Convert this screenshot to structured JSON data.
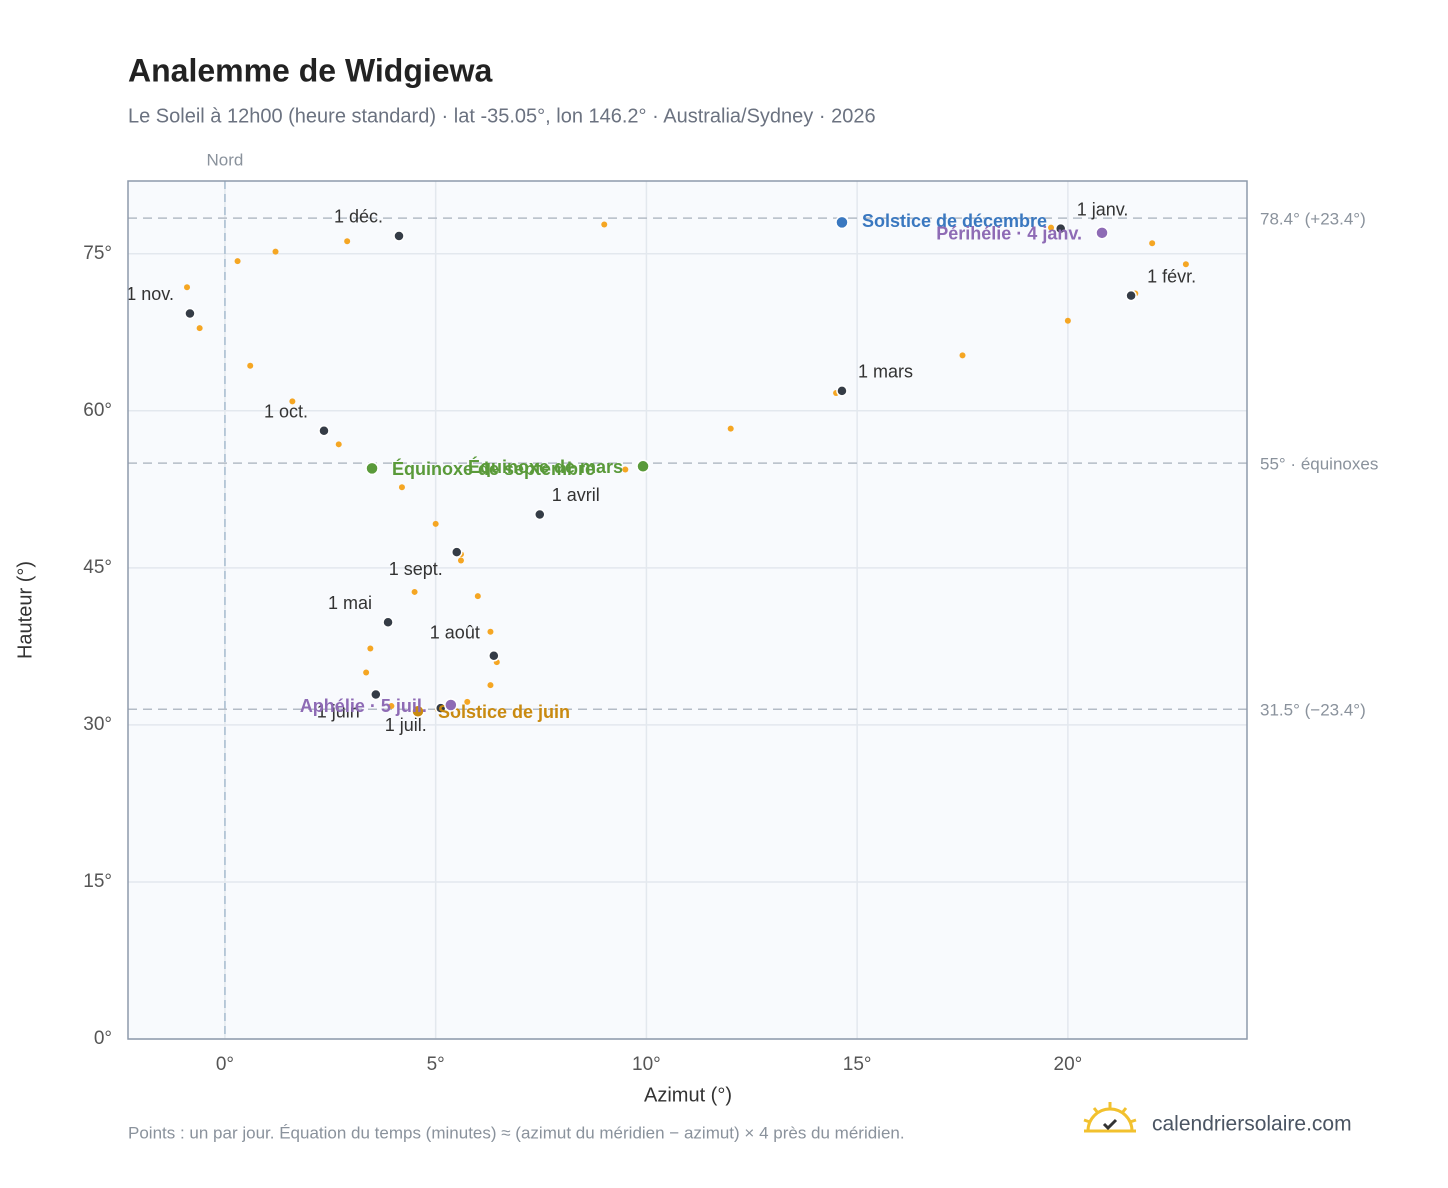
{
  "chart_data": {
    "type": "scatter",
    "title": "Analemme de Widgiewa",
    "subtitle": "Le Soleil à 12h00 (heure standard) · lat -35.05°, lon 146.2° · Australia/Sydney · 2026",
    "x_label": "Azimut (°)",
    "y_label": "Hauteur (°)",
    "note": "Points : un par jour. Équation du temps (minutes) ≈ (azimut du méridien − azimut) × 4 près du méridien.",
    "brand": "calendriersolaire.com",
    "xlim": [
      -2.3,
      24.25
    ],
    "ylim": [
      0,
      81.95
    ],
    "xticks": [
      {
        "value": 0,
        "label": "0°"
      },
      {
        "value": 5,
        "label": "5°"
      },
      {
        "value": 10,
        "label": "10°"
      },
      {
        "value": 15,
        "label": "15°"
      },
      {
        "value": 20,
        "label": "20°"
      }
    ],
    "yticks": [
      {
        "value": 0,
        "label": "0°"
      },
      {
        "value": 15,
        "label": "15°"
      },
      {
        "value": 30,
        "label": "30°"
      },
      {
        "value": 45,
        "label": "45°"
      },
      {
        "value": 60,
        "label": "60°"
      },
      {
        "value": 75,
        "label": "75°"
      }
    ],
    "grid": true,
    "vlines": [
      {
        "value": 0,
        "label": "Nord"
      }
    ],
    "hlines": [
      {
        "value": 78.4,
        "label": "78.4° (+23.4°)"
      },
      {
        "value": 55,
        "label": "55° · équinoxes"
      },
      {
        "value": 31.5,
        "label": "31.5° (−23.4°)"
      }
    ],
    "series": [
      {
        "color": "#f5a623",
        "x": [
          19.83,
          22.0,
          22.8,
          21.6,
          20.0,
          17.5,
          14.5,
          12.0,
          9.5,
          7.47,
          5.6,
          4.5,
          3.87,
          3.45,
          3.35,
          3.55,
          3.95,
          4.5,
          5.05,
          5.75,
          6.3,
          6.45,
          6.3,
          6.0,
          5.6,
          5.0,
          4.2,
          2.7,
          1.6,
          0.6,
          -0.6,
          -0.9,
          0.3,
          1.2,
          2.9,
          4.13,
          9.0,
          14.64,
          19.6
        ],
        "y": [
          77.4,
          76.0,
          74.0,
          71.2,
          68.6,
          65.3,
          61.7,
          58.3,
          54.4,
          50.1,
          46.3,
          42.7,
          39.8,
          37.3,
          35.0,
          33.0,
          31.8,
          31.3,
          31.5,
          32.2,
          33.8,
          36.0,
          38.9,
          42.3,
          45.7,
          49.2,
          52.7,
          56.8,
          60.9,
          64.3,
          67.9,
          71.8,
          74.3,
          75.2,
          76.2,
          76.7,
          77.8,
          78.0,
          77.5
        ]
      },
      {
        "color": "#353c46",
        "labels": [
          "1 janv.",
          "1 févr.",
          "1 mars",
          "1 avril",
          "1 mai",
          "1 juin",
          "1 juil.",
          "1 août",
          "1 sept.",
          "1 oct.",
          "1 nov.",
          "1 déc."
        ],
        "x": [
          19.83,
          21.5,
          14.64,
          7.47,
          3.87,
          3.58,
          5.12,
          6.38,
          5.5,
          2.35,
          -0.83,
          4.13
        ],
        "y": [
          77.4,
          71.0,
          61.9,
          50.1,
          39.8,
          32.9,
          31.6,
          36.6,
          46.5,
          58.1,
          69.3,
          76.7
        ]
      }
    ],
    "events": [
      {
        "label": "Solstice de décembre",
        "color": "#3a78c0",
        "x": 14.64,
        "y": 78.0
      },
      {
        "label": "Périhélie · 4 janv.",
        "color": "#8e6bb5",
        "x": 20.81,
        "y": 77.0
      },
      {
        "label": "Équinoxe de mars",
        "color": "#5a9a3a",
        "x": 9.92,
        "y": 54.7
      },
      {
        "label": "Équinoxe de septembre",
        "color": "#5a9a3a",
        "x": 3.49,
        "y": 54.5
      },
      {
        "label": "Solstice de juin",
        "color": "#c98a10",
        "x": 4.58,
        "y": 31.3
      },
      {
        "label": "Aphélie · 5 juil.",
        "color": "#8e6bb5",
        "x": 5.36,
        "y": 31.9
      }
    ]
  }
}
